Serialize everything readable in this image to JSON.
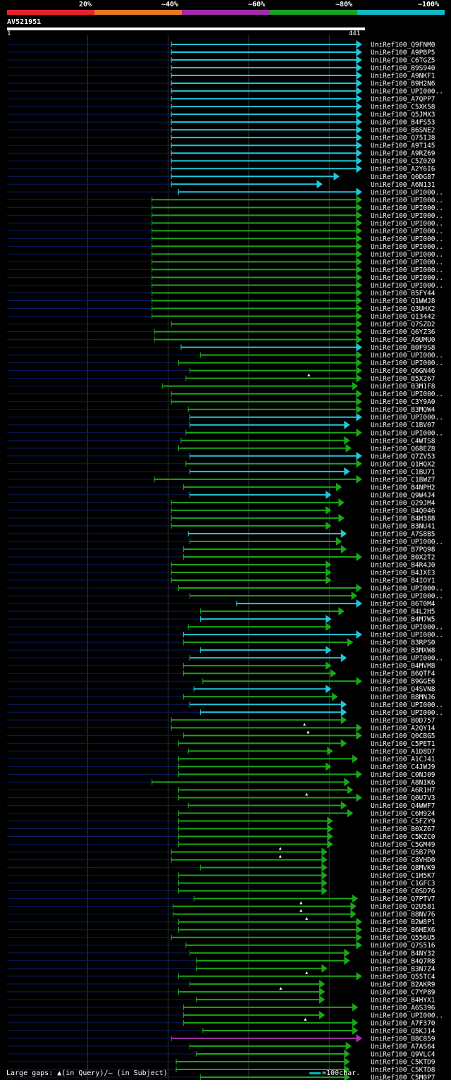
{
  "scale": {
    "labels": [
      "20%",
      "~40%",
      "~60%",
      "~80%",
      "~100%"
    ],
    "colors": [
      "#e8212a",
      "#e87820",
      "#a02ba8",
      "#18a020",
      "#10b8c8"
    ]
  },
  "query": {
    "id": "AV521951",
    "length_start": "1",
    "length_end": "441"
  },
  "colors": {
    "cyan": "#20c8d8",
    "green": "#18a818",
    "magenta": "#a830b0",
    "gap": "#0a1c60",
    "grid": "#333333"
  },
  "hits": [
    [
      "UniRef100_Q9FNM0",
      "c",
      205,
      441,
      0
    ],
    [
      "UniRef100_A9PBP5",
      "c",
      205,
      441,
      0
    ],
    [
      "UniRef100_C6TGZ5",
      "c",
      205,
      441,
      0
    ],
    [
      "UniRef100_B9S940",
      "c",
      205,
      441,
      0
    ],
    [
      "UniRef100_A9NKF1",
      "c",
      205,
      441,
      0
    ],
    [
      "UniRef100_B9H2N6",
      "c",
      205,
      441,
      0
    ],
    [
      "UniRef100_UPI000..",
      "c",
      205,
      441,
      0
    ],
    [
      "UniRef100_A7QPP7",
      "c",
      205,
      441,
      0
    ],
    [
      "UniRef100_C5XK58",
      "c",
      205,
      441,
      0
    ],
    [
      "UniRef100_Q5JMX3",
      "c",
      205,
      441,
      0
    ],
    [
      "UniRef100_B4FS53",
      "c",
      205,
      441,
      0
    ],
    [
      "UniRef100_B6SNE2",
      "c",
      205,
      441,
      0
    ],
    [
      "UniRef100_Q75IJ8",
      "c",
      205,
      441,
      0
    ],
    [
      "UniRef100_A9T145",
      "c",
      205,
      441,
      0
    ],
    [
      "UniRef100_A9RZ69",
      "c",
      205,
      441,
      0
    ],
    [
      "UniRef100_C5Z0Z0",
      "c",
      205,
      441,
      0
    ],
    [
      "UniRef100_A2Y6I6",
      "c",
      205,
      441,
      0
    ],
    [
      "UniRef100_Q0DG87",
      "c",
      205,
      413,
      0
    ],
    [
      "UniRef100_A6N131",
      "c",
      205,
      392,
      0
    ],
    [
      "UniRef100_UPI000..",
      "c",
      214,
      441,
      0
    ],
    [
      "UniRef100_UPI000..",
      "g",
      181,
      441,
      0
    ],
    [
      "UniRef100_UPI000..",
      "g",
      181,
      441,
      0
    ],
    [
      "UniRef100_UPI000..",
      "g",
      181,
      441,
      0
    ],
    [
      "UniRef100_UPI000..",
      "g",
      181,
      441,
      0
    ],
    [
      "UniRef100_UPI000..",
      "g",
      181,
      441,
      0
    ],
    [
      "UniRef100_UPI000..",
      "g",
      181,
      441,
      0
    ],
    [
      "UniRef100_UPI000..",
      "g",
      181,
      441,
      0
    ],
    [
      "UniRef100_UPI000..",
      "g",
      181,
      441,
      0
    ],
    [
      "UniRef100_UPI000..",
      "g",
      181,
      441,
      0
    ],
    [
      "UniRef100_UPI000..",
      "g",
      181,
      441,
      0
    ],
    [
      "UniRef100_UPI000..",
      "g",
      181,
      441,
      0
    ],
    [
      "UniRef100_UPI000..",
      "g",
      181,
      441,
      0
    ],
    [
      "UniRef100_B5FY44",
      "g",
      181,
      441,
      0
    ],
    [
      "UniRef100_Q1WWJ8",
      "g",
      181,
      441,
      0
    ],
    [
      "UniRef100_Q3UHX2",
      "g",
      181,
      441,
      0
    ],
    [
      "UniRef100_Q13442",
      "g",
      181,
      441,
      0
    ],
    [
      "UniRef100_Q7SZD2",
      "g",
      205,
      441,
      0
    ],
    [
      "UniRef100_Q6YZ36",
      "g",
      184,
      441,
      0
    ],
    [
      "UniRef100_A9UMU0",
      "g",
      184,
      441,
      0
    ],
    [
      "UniRef100_B0F9S8",
      "c",
      217,
      441,
      0
    ],
    [
      "UniRef100_UPI000..",
      "g",
      241,
      441,
      0
    ],
    [
      "UniRef100_UPI000..",
      "g",
      214,
      441,
      0
    ],
    [
      "UniRef100_Q6GN46",
      "g",
      228,
      441,
      0
    ],
    [
      "UniRef100_B5X267",
      "g",
      223,
      441,
      1
    ],
    [
      "UniRef100_B3M1F8",
      "g",
      194,
      436,
      0
    ],
    [
      "UniRef100_UPI000..",
      "g",
      205,
      441,
      0
    ],
    [
      "UniRef100_C3Y9A0",
      "g",
      205,
      441,
      0
    ],
    [
      "UniRef100_B3MQW4",
      "g",
      226,
      441,
      0
    ],
    [
      "UniRef100_UPI000..",
      "c",
      228,
      441,
      0
    ],
    [
      "UniRef100_C1BV07",
      "c",
      228,
      426,
      0
    ],
    [
      "UniRef100_UPI000..",
      "g",
      223,
      441,
      0
    ],
    [
      "UniRef100_C4WTS8",
      "g",
      217,
      426,
      0
    ],
    [
      "UniRef100_Q68EZ8",
      "g",
      214,
      428,
      0
    ],
    [
      "UniRef100_Q7ZV53",
      "c",
      228,
      441,
      0
    ],
    [
      "UniRef100_Q1HQX2",
      "g",
      223,
      441,
      0
    ],
    [
      "UniRef100_C1BU71",
      "c",
      228,
      426,
      0
    ],
    [
      "UniRef100_C1BWZ7",
      "g",
      184,
      441,
      0
    ],
    [
      "UniRef100_B4NPH2",
      "g",
      220,
      416,
      0
    ],
    [
      "UniRef100_Q9W4J4",
      "c",
      228,
      403,
      0
    ],
    [
      "UniRef100_Q29JM4",
      "g",
      205,
      419,
      0
    ],
    [
      "UniRef100_B4Q046",
      "g",
      205,
      403,
      0
    ],
    [
      "UniRef100_B4H388",
      "g",
      205,
      419,
      0
    ],
    [
      "UniRef100_B3NU41",
      "g",
      205,
      403,
      0
    ],
    [
      "UniRef100_A7S8B5",
      "c",
      226,
      422,
      0
    ],
    [
      "UniRef100_UPI000..",
      "g",
      228,
      416,
      0
    ],
    [
      "UniRef100_B7PQ98",
      "g",
      220,
      422,
      0
    ],
    [
      "UniRef100_B0X2T2",
      "g",
      220,
      441,
      0
    ],
    [
      "UniRef100_B4R4J0",
      "g",
      205,
      403,
      0
    ],
    [
      "UniRef100_B4JXE3",
      "g",
      205,
      403,
      0
    ],
    [
      "UniRef100_B4IOY1",
      "g",
      205,
      403,
      0
    ],
    [
      "UniRef100_UPI000..",
      "g",
      214,
      441,
      0
    ],
    [
      "UniRef100_UPI000..",
      "g",
      228,
      435,
      0
    ],
    [
      "UniRef100_B6T0M4",
      "c",
      286,
      441,
      0
    ],
    [
      "UniRef100_B4L2H5",
      "g",
      241,
      419,
      0
    ],
    [
      "UniRef100_B4M7W5",
      "c",
      241,
      403,
      0
    ],
    [
      "UniRef100_UPI000..",
      "g",
      226,
      403,
      0
    ],
    [
      "UniRef100_UPI000..",
      "c",
      220,
      441,
      0
    ],
    [
      "UniRef100_B3RPS0",
      "g",
      220,
      430,
      0
    ],
    [
      "UniRef100_B3MXW8",
      "c",
      241,
      403,
      0
    ],
    [
      "UniRef100_UPI000..",
      "c",
      228,
      422,
      0
    ],
    [
      "UniRef100_B4MVM8",
      "g",
      220,
      403,
      0
    ],
    [
      "UniRef100_B6QTF4",
      "g",
      220,
      409,
      0
    ],
    [
      "UniRef100_B9GGE6",
      "g",
      244,
      441,
      0
    ],
    [
      "UniRef100_Q4SVN8",
      "c",
      233,
      403,
      0
    ],
    [
      "UniRef100_B8MNJ6",
      "g",
      220,
      411,
      0
    ],
    [
      "UniRef100_UPI000..",
      "c",
      228,
      422,
      0
    ],
    [
      "UniRef100_UPI000..",
      "c",
      241,
      422,
      0
    ],
    [
      "UniRef100_B0D757",
      "g",
      205,
      422,
      0
    ],
    [
      "UniRef100_A2QY14",
      "g",
      205,
      441,
      1
    ],
    [
      "UniRef100_Q0CBG5",
      "g",
      220,
      441,
      1
    ],
    [
      "UniRef100_C5PET1",
      "g",
      214,
      422,
      0
    ],
    [
      "UniRef100_A1D8D7",
      "g",
      226,
      405,
      0
    ],
    [
      "UniRef100_A1CJ41",
      "g",
      214,
      436,
      0
    ],
    [
      "UniRef100_C4JWJ9",
      "g",
      214,
      403,
      0
    ],
    [
      "UniRef100_C0NJ09",
      "g",
      214,
      441,
      0
    ],
    [
      "UniRef100_A8NIK6",
      "g",
      181,
      426,
      0
    ],
    [
      "UniRef100_A6R1H7",
      "g",
      214,
      430,
      0
    ],
    [
      "UniRef100_Q0U7V3",
      "g",
      214,
      441,
      1
    ],
    [
      "UniRef100_Q4WWF7",
      "g",
      226,
      422,
      0
    ],
    [
      "UniRef100_C6H924",
      "g",
      214,
      430,
      0
    ],
    [
      "UniRef100_C5FZY9",
      "g",
      214,
      405,
      0
    ],
    [
      "UniRef100_B0XZ67",
      "g",
      214,
      405,
      0
    ],
    [
      "UniRef100_C5KZC0",
      "g",
      214,
      405,
      0
    ],
    [
      "UniRef100_C5GM49",
      "g",
      214,
      405,
      0
    ],
    [
      "UniRef100_Q5B7P0",
      "g",
      205,
      398,
      1
    ],
    [
      "UniRef100_C8VHD0",
      "g",
      205,
      398,
      1
    ],
    [
      "UniRef100_Q8MVK9",
      "g",
      241,
      398,
      0
    ],
    [
      "UniRef100_C1H5K7",
      "g",
      214,
      398,
      0
    ],
    [
      "UniRef100_C1GFC3",
      "g",
      214,
      398,
      0
    ],
    [
      "UniRef100_C0SD76",
      "g",
      214,
      398,
      0
    ],
    [
      "UniRef100_Q7PTV7",
      "g",
      233,
      436,
      0
    ],
    [
      "UniRef100_Q2U581",
      "g",
      207,
      434,
      1
    ],
    [
      "UniRef100_B8NV76",
      "g",
      207,
      434,
      1
    ],
    [
      "UniRef100_B2W8P1",
      "g",
      214,
      441,
      1
    ],
    [
      "UniRef100_B6HEX6",
      "g",
      214,
      441,
      0
    ],
    [
      "UniRef100_Q556U5",
      "g",
      205,
      441,
      0
    ],
    [
      "UniRef100_Q7S516",
      "g",
      223,
      441,
      0
    ],
    [
      "UniRef100_B4NY32",
      "g",
      228,
      426,
      0
    ],
    [
      "UniRef100_B4Q7R8",
      "g",
      236,
      426,
      0
    ],
    [
      "UniRef100_B3N7Z4",
      "g",
      236,
      398,
      0
    ],
    [
      "UniRef100_Q55TC4",
      "g",
      214,
      441,
      1
    ],
    [
      "UniRef100_B2AKR9",
      "g",
      228,
      395,
      0
    ],
    [
      "UniRef100_C7YP89",
      "g",
      214,
      395,
      1
    ],
    [
      "UniRef100_B4HYX1",
      "g",
      236,
      395,
      0
    ],
    [
      "UniRef100_A6S396",
      "g",
      220,
      436,
      0
    ],
    [
      "UniRef100_UPI000..",
      "g",
      220,
      395,
      0
    ],
    [
      "UniRef100_A7F370",
      "g",
      220,
      436,
      1
    ],
    [
      "UniRef100_Q5KJ14",
      "g",
      244,
      436,
      0
    ],
    [
      "UniRef100_B8C859",
      "m",
      205,
      441,
      0
    ],
    [
      "UniRef100_A7AS64",
      "g",
      228,
      428,
      0
    ],
    [
      "UniRef100_Q9VLC4",
      "g",
      236,
      426,
      0
    ],
    [
      "UniRef100_C5KTD9",
      "g",
      211,
      426,
      0
    ],
    [
      "UniRef100_C5KTD8",
      "g",
      211,
      426,
      0
    ],
    [
      "UniRef100_C5M0P7",
      "g",
      241,
      426,
      0
    ]
  ],
  "footer": {
    "gaps": "Large gaps: ▲(in Query)/— (in Subject)",
    "legend": "=100char."
  }
}
